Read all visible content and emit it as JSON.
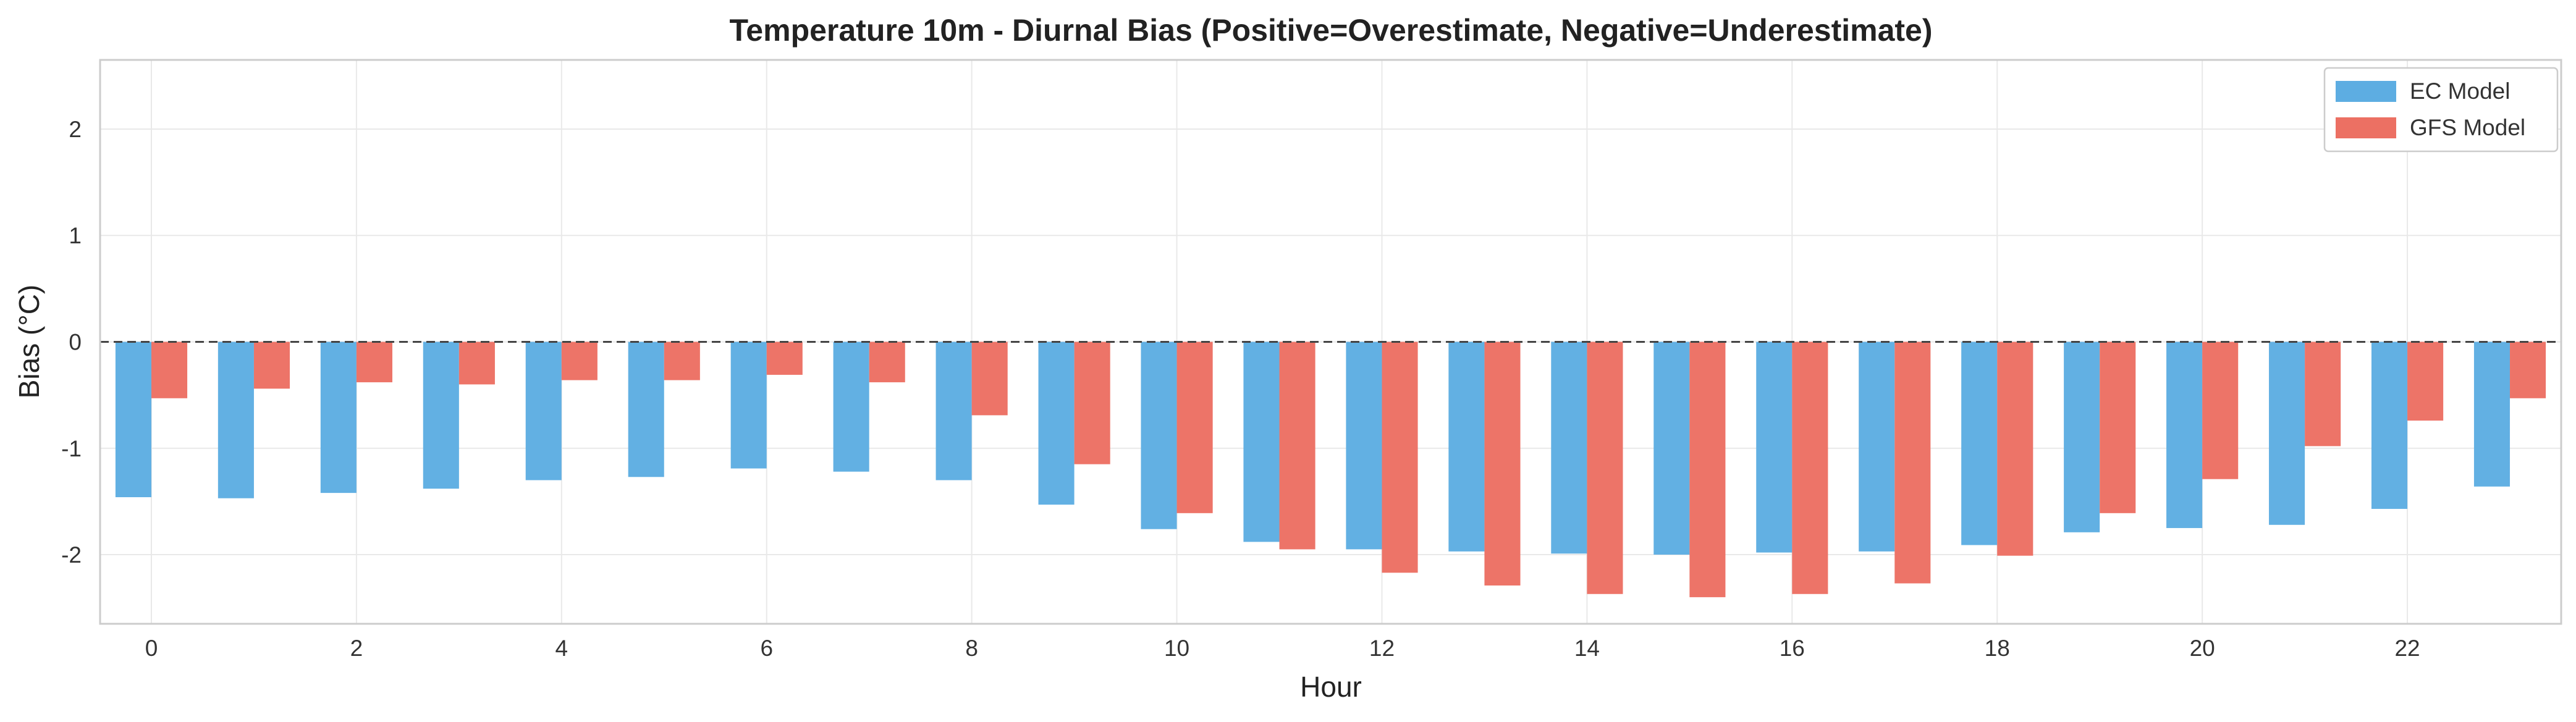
{
  "chart_data": {
    "type": "bar",
    "title": "Temperature 10m - Diurnal Bias (Positive=Overestimate, Negative=Underestimate)",
    "xlabel": "Hour",
    "ylabel": "Bias (°C)",
    "x": [
      0,
      1,
      2,
      3,
      4,
      5,
      6,
      7,
      8,
      9,
      10,
      11,
      12,
      13,
      14,
      15,
      16,
      17,
      18,
      19,
      20,
      21,
      22,
      23
    ],
    "xticks": [
      0,
      2,
      4,
      6,
      8,
      10,
      12,
      14,
      16,
      18,
      20,
      22
    ],
    "yticks": [
      -2,
      -1,
      0,
      1,
      2
    ],
    "ylim": [
      -2.65,
      2.65
    ],
    "xlim": [
      -0.5,
      23.5
    ],
    "grid": true,
    "zero_line": "dashed",
    "legend_position": "top-right",
    "series": [
      {
        "name": "EC Model",
        "color": "#5DADE2",
        "values": [
          -1.46,
          -1.47,
          -1.42,
          -1.38,
          -1.3,
          -1.27,
          -1.19,
          -1.22,
          -1.3,
          -1.53,
          -1.76,
          -1.88,
          -1.95,
          -1.97,
          -1.99,
          -2.0,
          -1.98,
          -1.97,
          -1.91,
          -1.79,
          -1.75,
          -1.72,
          -1.57,
          -1.36
        ]
      },
      {
        "name": "GFS Model",
        "color": "#EC7063",
        "values": [
          -0.53,
          -0.44,
          -0.38,
          -0.4,
          -0.36,
          -0.36,
          -0.31,
          -0.38,
          -0.69,
          -1.15,
          -1.61,
          -1.95,
          -2.17,
          -2.29,
          -2.37,
          -2.4,
          -2.37,
          -2.27,
          -2.01,
          -1.61,
          -1.29,
          -0.98,
          -0.74,
          -0.53
        ]
      }
    ]
  }
}
